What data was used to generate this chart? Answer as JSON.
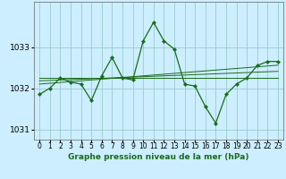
{
  "title": "Graphe pression niveau de la mer (hPa)",
  "background_color": "#cceeff",
  "line_color": "#1a6b1a",
  "grid_color": "#99cccc",
  "x_values": [
    0,
    1,
    2,
    3,
    4,
    5,
    6,
    7,
    8,
    9,
    10,
    11,
    12,
    13,
    14,
    15,
    16,
    17,
    18,
    19,
    20,
    21,
    22,
    23
  ],
  "y_main": [
    1031.85,
    1032.0,
    1032.25,
    1032.15,
    1032.1,
    1031.7,
    1032.3,
    1032.75,
    1032.25,
    1032.2,
    1033.15,
    1033.6,
    1033.15,
    1032.95,
    1032.1,
    1032.05,
    1031.55,
    1031.15,
    1031.85,
    1032.1,
    1032.25,
    1032.55,
    1032.65,
    1032.65
  ],
  "y_trend_flat": [
    1032.25,
    1032.25,
    1032.25,
    1032.25,
    1032.25,
    1032.25,
    1032.25,
    1032.25,
    1032.25,
    1032.25,
    1032.25,
    1032.25,
    1032.25,
    1032.25,
    1032.25,
    1032.25,
    1032.25,
    1032.25,
    1032.25,
    1032.25,
    1032.25,
    1032.25,
    1032.25,
    1032.25
  ],
  "y_trend_up1": [
    1032.18,
    1032.19,
    1032.2,
    1032.21,
    1032.22,
    1032.23,
    1032.24,
    1032.25,
    1032.26,
    1032.27,
    1032.28,
    1032.29,
    1032.3,
    1032.31,
    1032.32,
    1032.33,
    1032.34,
    1032.35,
    1032.36,
    1032.37,
    1032.38,
    1032.39,
    1032.4,
    1032.41
  ],
  "y_trend_up2": [
    1032.1,
    1032.12,
    1032.14,
    1032.16,
    1032.18,
    1032.2,
    1032.22,
    1032.24,
    1032.26,
    1032.28,
    1032.3,
    1032.32,
    1032.34,
    1032.36,
    1032.38,
    1032.4,
    1032.42,
    1032.44,
    1032.46,
    1032.48,
    1032.5,
    1032.52,
    1032.54,
    1032.56
  ],
  "ylim": [
    1030.75,
    1034.1
  ],
  "yticks": [
    1031,
    1032,
    1033
  ],
  "xlim": [
    -0.5,
    23.5
  ],
  "xticks": [
    0,
    1,
    2,
    3,
    4,
    5,
    6,
    7,
    8,
    9,
    10,
    11,
    12,
    13,
    14,
    15,
    16,
    17,
    18,
    19,
    20,
    21,
    22,
    23
  ],
  "xlabel_fontsize": 6.5,
  "tick_fontsize": 5.5,
  "ytick_fontsize": 6.5
}
